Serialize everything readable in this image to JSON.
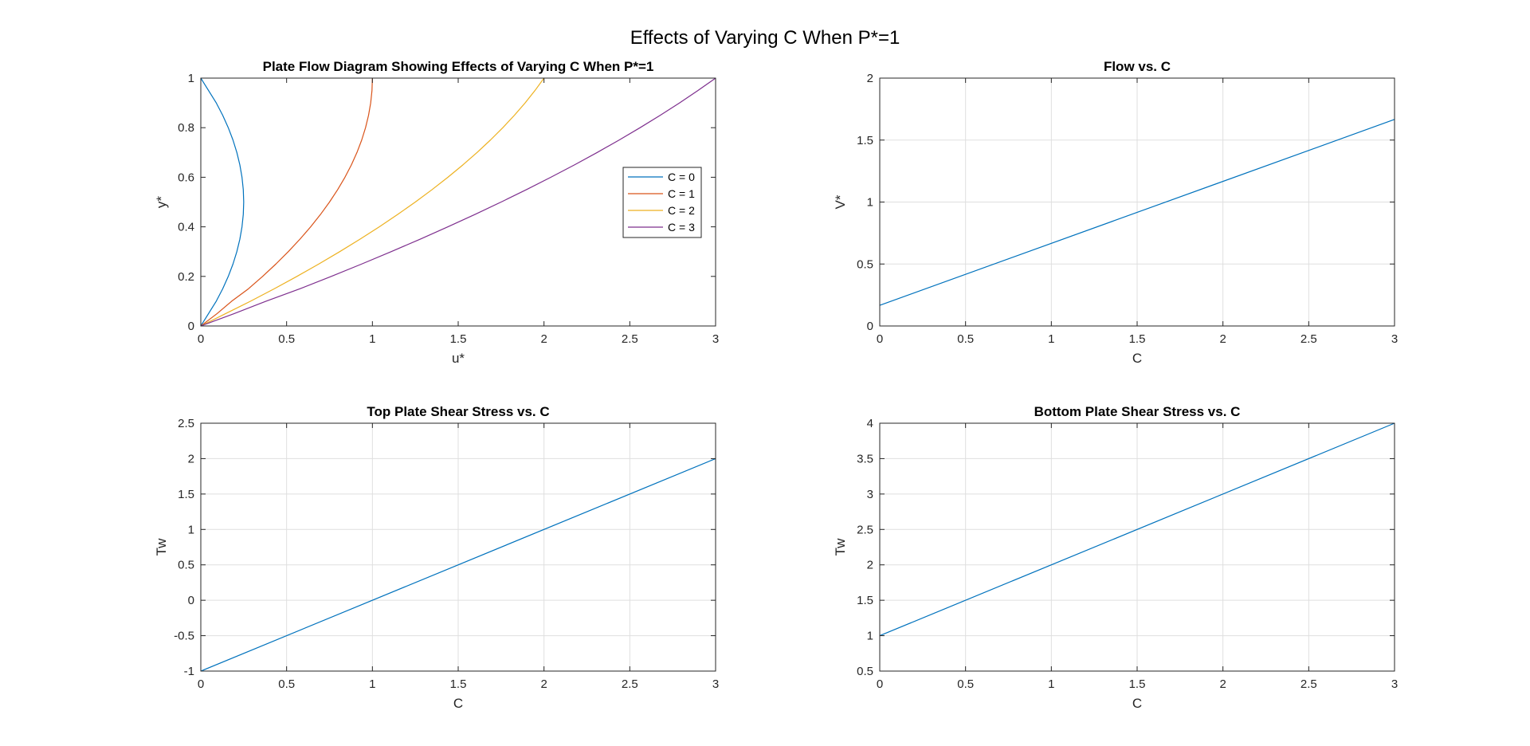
{
  "figure": {
    "title": "Effects of Varying C When P*=1",
    "background": "#ffffff"
  },
  "colors": {
    "axis": "#262626",
    "grid": "#dfdfdf",
    "legend_border": "#262626"
  },
  "chart_data": [
    {
      "type": "line",
      "title": "Plate Flow Diagram Showing Effects of Varying C When P*=1",
      "xlabel": "u*",
      "ylabel": "y*",
      "xlim": [
        0,
        3
      ],
      "ylim": [
        0,
        1
      ],
      "xticks": [
        0,
        0.5,
        1,
        1.5,
        2,
        2.5,
        3
      ],
      "yticks": [
        0,
        0.2,
        0.4,
        0.6,
        0.8,
        1
      ],
      "xtick_labels": [
        "0",
        "0.5",
        "1",
        "1.5",
        "2",
        "2.5",
        "3"
      ],
      "ytick_labels": [
        "0",
        "0.2",
        "0.4",
        "0.6",
        "0.8",
        "1"
      ],
      "grid": false,
      "legend": "right",
      "series": [
        {
          "name": "C = 0",
          "color": "#0072BD",
          "points": [
            [
              0,
              0
            ],
            [
              0.045,
              0.05
            ],
            [
              0.09,
              0.1
            ],
            [
              0.1275,
              0.15
            ],
            [
              0.16,
              0.2
            ],
            [
              0.1875,
              0.25
            ],
            [
              0.21,
              0.3
            ],
            [
              0.2275,
              0.35
            ],
            [
              0.24,
              0.4
            ],
            [
              0.2475,
              0.45
            ],
            [
              0.25,
              0.5
            ],
            [
              0.2475,
              0.55
            ],
            [
              0.24,
              0.6
            ],
            [
              0.2275,
              0.65
            ],
            [
              0.21,
              0.7
            ],
            [
              0.1875,
              0.75
            ],
            [
              0.16,
              0.8
            ],
            [
              0.1275,
              0.85
            ],
            [
              0.09,
              0.9
            ],
            [
              0.045,
              0.95
            ],
            [
              0,
              1
            ]
          ]
        },
        {
          "name": "C = 1",
          "color": "#D95319",
          "points": [
            [
              0,
              0
            ],
            [
              0.095,
              0.05
            ],
            [
              0.18,
              0.1
            ],
            [
              0.2775,
              0.15
            ],
            [
              0.36,
              0.2
            ],
            [
              0.4375,
              0.25
            ],
            [
              0.51,
              0.3
            ],
            [
              0.5775,
              0.35
            ],
            [
              0.64,
              0.4
            ],
            [
              0.6975,
              0.45
            ],
            [
              0.75,
              0.5
            ],
            [
              0.7975,
              0.55
            ],
            [
              0.84,
              0.6
            ],
            [
              0.8775,
              0.65
            ],
            [
              0.91,
              0.7
            ],
            [
              0.9375,
              0.75
            ],
            [
              0.96,
              0.8
            ],
            [
              0.9775,
              0.85
            ],
            [
              0.99,
              0.9
            ],
            [
              0.9975,
              0.95
            ],
            [
              1,
              1
            ]
          ]
        },
        {
          "name": "C = 2",
          "color": "#EDB120",
          "points": [
            [
              0,
              0
            ],
            [
              0.145,
              0.05
            ],
            [
              0.29,
              0.1
            ],
            [
              0.4275,
              0.15
            ],
            [
              0.56,
              0.2
            ],
            [
              0.6875,
              0.25
            ],
            [
              0.81,
              0.3
            ],
            [
              0.9275,
              0.35
            ],
            [
              1.04,
              0.4
            ],
            [
              1.1475,
              0.45
            ],
            [
              1.25,
              0.5
            ],
            [
              1.3475,
              0.55
            ],
            [
              1.44,
              0.6
            ],
            [
              1.5275,
              0.65
            ],
            [
              1.61,
              0.7
            ],
            [
              1.6875,
              0.75
            ],
            [
              1.76,
              0.8
            ],
            [
              1.8275,
              0.85
            ],
            [
              1.89,
              0.9
            ],
            [
              1.9475,
              0.95
            ],
            [
              2,
              1
            ]
          ]
        },
        {
          "name": "C = 3",
          "color": "#7E2F8E",
          "points": [
            [
              0,
              0
            ],
            [
              0.195,
              0.05
            ],
            [
              0.38,
              0.1
            ],
            [
              0.5775,
              0.15
            ],
            [
              0.76,
              0.2
            ],
            [
              0.9375,
              0.25
            ],
            [
              1.11,
              0.3
            ],
            [
              1.2775,
              0.35
            ],
            [
              1.44,
              0.4
            ],
            [
              1.5975,
              0.45
            ],
            [
              1.75,
              0.5
            ],
            [
              1.8975,
              0.55
            ],
            [
              2.04,
              0.6
            ],
            [
              2.1775,
              0.65
            ],
            [
              2.31,
              0.7
            ],
            [
              2.4375,
              0.75
            ],
            [
              2.56,
              0.8
            ],
            [
              2.6775,
              0.85
            ],
            [
              2.79,
              0.9
            ],
            [
              2.8975,
              0.95
            ],
            [
              3,
              1
            ]
          ]
        }
      ]
    },
    {
      "type": "line",
      "title": "Flow vs. C",
      "xlabel": "C",
      "ylabel": "V*",
      "xlim": [
        0,
        3
      ],
      "ylim": [
        0,
        2
      ],
      "xticks": [
        0,
        0.5,
        1,
        1.5,
        2,
        2.5,
        3
      ],
      "yticks": [
        0,
        0.5,
        1,
        1.5,
        2
      ],
      "xtick_labels": [
        "0",
        "0.5",
        "1",
        "1.5",
        "2",
        "2.5",
        "3"
      ],
      "ytick_labels": [
        "0",
        "0.5",
        "1",
        "1.5",
        "2"
      ],
      "grid": true,
      "series": [
        {
          "color": "#0072BD",
          "points": [
            [
              0,
              0.1667
            ],
            [
              3,
              1.6667
            ]
          ]
        }
      ]
    },
    {
      "type": "line",
      "title": "Top Plate Shear Stress vs. C",
      "xlabel": "C",
      "ylabel": "Tw",
      "xlim": [
        0,
        3
      ],
      "ylim": [
        -1,
        2.5
      ],
      "xticks": [
        0,
        0.5,
        1,
        1.5,
        2,
        2.5,
        3
      ],
      "yticks": [
        -1,
        -0.5,
        0,
        0.5,
        1,
        1.5,
        2,
        2.5
      ],
      "xtick_labels": [
        "0",
        "0.5",
        "1",
        "1.5",
        "2",
        "2.5",
        "3"
      ],
      "ytick_labels": [
        "-1",
        "-0.5",
        "0",
        "0.5",
        "1",
        "1.5",
        "2",
        "2.5"
      ],
      "grid": true,
      "series": [
        {
          "color": "#0072BD",
          "points": [
            [
              0,
              -1
            ],
            [
              3,
              2
            ]
          ]
        }
      ]
    },
    {
      "type": "line",
      "title": "Bottom Plate Shear Stress vs. C",
      "xlabel": "C",
      "ylabel": "Tw",
      "xlim": [
        0,
        3
      ],
      "ylim": [
        0.5,
        4
      ],
      "xticks": [
        0,
        0.5,
        1,
        1.5,
        2,
        2.5,
        3
      ],
      "yticks": [
        0.5,
        1,
        1.5,
        2,
        2.5,
        3,
        3.5,
        4
      ],
      "xtick_labels": [
        "0",
        "0.5",
        "1",
        "1.5",
        "2",
        "2.5",
        "3"
      ],
      "ytick_labels": [
        "0.5",
        "1",
        "1.5",
        "2",
        "2.5",
        "3",
        "3.5",
        "4"
      ],
      "grid": true,
      "series": [
        {
          "color": "#0072BD",
          "points": [
            [
              0,
              1
            ],
            [
              3,
              4
            ]
          ]
        }
      ]
    }
  ]
}
